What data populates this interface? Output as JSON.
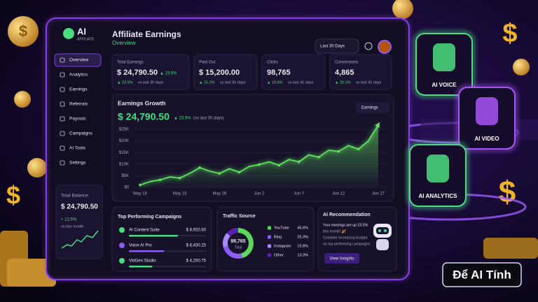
{
  "brand": {
    "logo": "AI",
    "tagline": "AFFILIATE"
  },
  "header": {
    "title": "Affiliate Earnings",
    "subtitle": "Overview",
    "period": "Last 30 Days"
  },
  "sidebar": {
    "items": [
      "Overview",
      "Analytics",
      "Earnings",
      "Referrals",
      "Payouts",
      "Campaigns",
      "AI Tools",
      "Settings"
    ],
    "balance": {
      "label": "Total Balance",
      "value": "$ 24,790.50",
      "change": "+ 12.5%",
      "note": "vs last month"
    }
  },
  "kpis": [
    {
      "label": "Total Earnings",
      "value": "$ 24,790.50",
      "badge": "▲ 23.5%",
      "change": "▲ 23.5%",
      "note": "vs last 30 days"
    },
    {
      "label": "Paid Out",
      "value": "$ 15,200.00",
      "change": "▲ 15.2%",
      "note": "vs last 30 days"
    },
    {
      "label": "Clicks",
      "value": "98,765",
      "change": "▲ 19.6%",
      "note": "vs last 30 days"
    },
    {
      "label": "Conversions",
      "value": "4,865",
      "change": "▲ 20.1%",
      "note": "vs last 30 days"
    }
  ],
  "chart_data": [
    {
      "type": "line",
      "title": "Earnings Growth",
      "headline": "$ 24,790.50",
      "change": "▲ 23.5%",
      "note": "(vs last 30 days)",
      "selector": "Earnings",
      "categories": [
        "May 18",
        null,
        null,
        null,
        "May 23",
        null,
        null,
        null,
        "May 28",
        null,
        null,
        null,
        "Jun 2",
        null,
        null,
        null,
        "Jun 7",
        null,
        null,
        null,
        "Jun 12",
        null,
        null,
        null,
        "Jun 17"
      ],
      "values": [
        1000,
        2500,
        3200,
        4500,
        4000,
        6000,
        8500,
        7000,
        6000,
        8000,
        6500,
        9000,
        9800,
        11000,
        9500,
        12000,
        11000,
        14000,
        13000,
        16000,
        15500,
        18000,
        16500,
        20000,
        27000
      ],
      "color": "#5ee35e",
      "ylim": [
        0,
        28000
      ],
      "yticks": [
        {
          "value": 0,
          "label": "$0"
        },
        {
          "value": 5000,
          "label": "$5K"
        },
        {
          "value": 10000,
          "label": "$10K"
        },
        {
          "value": 15000,
          "label": "$15K"
        },
        {
          "value": 20000,
          "label": "$20K"
        },
        {
          "value": 25000,
          "label": "$25K"
        }
      ],
      "grid": true
    },
    {
      "type": "pie",
      "title": "Traffic Source",
      "center_value": "98,765",
      "center_label": "Total",
      "categories": [
        "YouTube",
        "Blog",
        "Instagram",
        "Other"
      ],
      "values": [
        45.6,
        25.3,
        15.8,
        13.3
      ],
      "value_labels": [
        "45.6%",
        "25.3%",
        "15.8%",
        "13.3%"
      ],
      "colors": [
        "#5bd85b",
        "#8b5cf6",
        "#a78bfa",
        "#5b21b6"
      ]
    }
  ],
  "campaigns": {
    "title": "Top Performing Campaigns",
    "items": [
      {
        "name": "AI Content Suite",
        "value": 8920.5,
        "value_label": "$ 8,920.50",
        "color": "#4ade80"
      },
      {
        "name": "Voice AI Pro",
        "value": 6430.25,
        "value_label": "$ 6,430.25",
        "color": "#8b5cf6"
      },
      {
        "name": "VidGen Studio",
        "value": 4250.75,
        "value_label": "$ 4,250.75",
        "color": "#4ade80"
      }
    ]
  },
  "recommendation": {
    "title": "AI Recommendation",
    "lines": [
      "Your earnings are up 23.5%",
      "this month! 🎉",
      "Consider increasing budget",
      "on top performing campaigns."
    ],
    "button": "View Insights"
  },
  "features": [
    "AI VOICE",
    "AI VIDEO",
    "AI ANALYTICS"
  ],
  "watermark": "Để AI Tính"
}
